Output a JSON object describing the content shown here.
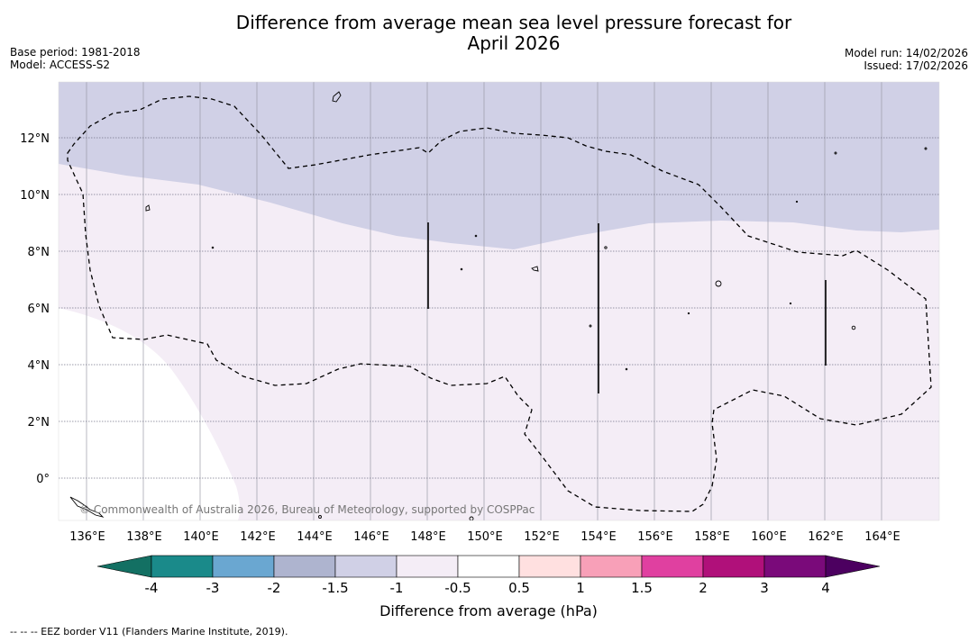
{
  "title": {
    "line1": "Difference from average mean sea level pressure forecast for",
    "line2": "April 2026"
  },
  "meta": {
    "base_period": "Base period: 1981-2018",
    "model": "Model: ACCESS-S2",
    "model_run": "Model run: 14/02/2026",
    "issued": "Issued: 17/02/2026"
  },
  "map": {
    "copyright": "© Commonwealth of Australia 2026, Bureau of Meteorology, supported by COSPPac",
    "lat_labels": [
      "12°N",
      "10°N",
      "8°N",
      "6°N",
      "4°N",
      "2°N",
      "0°"
    ],
    "lon_labels": [
      "136°E",
      "138°E",
      "140°E",
      "142°E",
      "144°E",
      "146°E",
      "148°E",
      "150°E",
      "152°E",
      "154°E",
      "156°E",
      "158°E",
      "160°E",
      "162°E",
      "164°E"
    ],
    "lon_range": [
      135,
      166
    ],
    "lat_range": [
      -1.5,
      14
    ]
  },
  "legend": {
    "ticks": [
      "-4",
      "-3",
      "-2",
      "-1.5",
      "-1",
      "-0.5",
      "0.5",
      "1",
      "1.5",
      "2",
      "3",
      "4"
    ],
    "colors": [
      "#1a8a8a",
      "#6aa7d1",
      "#aeb4cf",
      "#d0d0e6",
      "#f4edf6",
      "#ffffff",
      "#ffe0e0",
      "#f8a0b8",
      "#e040a0",
      "#b0107a",
      "#7a0a7a"
    ],
    "low_color": "#137063",
    "high_color": "#4c0060",
    "label": "Difference from average (hPa)"
  },
  "footer": "-- -- -- EEZ border V11 (Flanders Marine Institute, 2019)."
}
